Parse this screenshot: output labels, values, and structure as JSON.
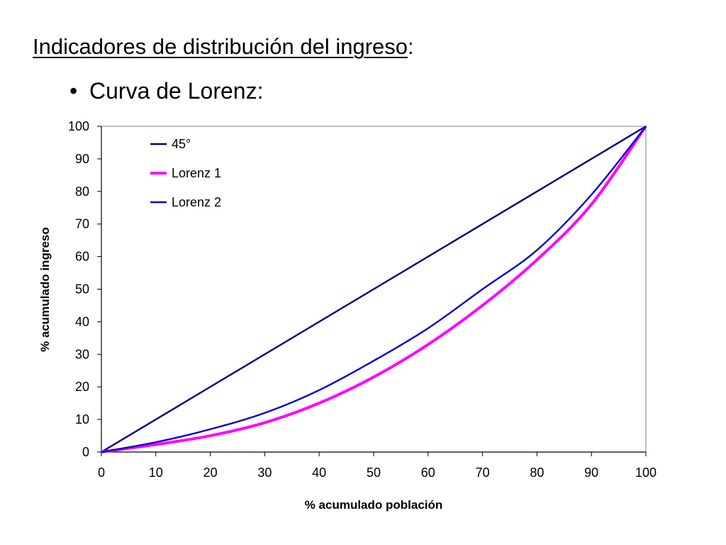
{
  "slide": {
    "title": "Indicadores de distribución del ingreso",
    "title_suffix": ":",
    "bullet_marker": "•",
    "bullet_text": "Curva de Lorenz:"
  },
  "chart_data": {
    "type": "line",
    "xlabel": "% acumulado población",
    "ylabel": "% acumulado ingreso",
    "xlim": [
      0,
      100
    ],
    "ylim": [
      0,
      100
    ],
    "x_ticks": [
      0,
      10,
      20,
      30,
      40,
      50,
      60,
      70,
      80,
      90,
      100
    ],
    "y_ticks": [
      0,
      10,
      20,
      30,
      40,
      50,
      60,
      70,
      80,
      90,
      100
    ],
    "grid": false,
    "legend_position": "top-left",
    "series": [
      {
        "name": "45°",
        "color": "#000080",
        "x": [
          0,
          100
        ],
        "y": [
          0,
          100
        ]
      },
      {
        "name": "Lorenz 1",
        "color": "#ff00ff",
        "x": [
          0,
          10,
          20,
          30,
          40,
          50,
          60,
          70,
          80,
          90,
          100
        ],
        "y": [
          0,
          2.3,
          5.0,
          9.0,
          15.0,
          23.0,
          33.0,
          45.0,
          59.0,
          76.0,
          100
        ]
      },
      {
        "name": "Lorenz 2",
        "color": "#0000cc",
        "x": [
          0,
          10,
          20,
          30,
          40,
          50,
          60,
          70,
          80,
          90,
          100
        ],
        "y": [
          0,
          3.0,
          7.0,
          12.0,
          19.0,
          28.0,
          38.0,
          50.0,
          62.0,
          79.0,
          100
        ]
      }
    ]
  }
}
